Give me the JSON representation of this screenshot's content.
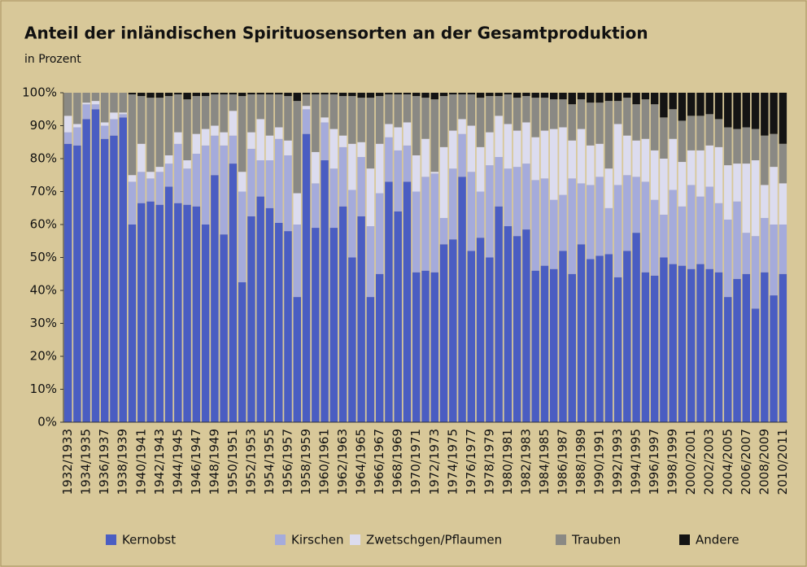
{
  "chart_data": {
    "type": "stacked_bar",
    "title": "Anteil der inländischen Spirituosensorten an der Gesamtproduktion",
    "subtitle": "in Prozent",
    "categories": [
      "1932/1933",
      null,
      "1934/1935",
      null,
      "1936/1937",
      null,
      "1938/1939",
      null,
      "1940/1941",
      null,
      "1942/1943",
      null,
      "1944/1945",
      null,
      "1946/1947",
      null,
      "1948/1949",
      null,
      "1950/1951",
      null,
      "1952/1953",
      null,
      "1954/1955",
      null,
      "1956/1957",
      null,
      "1958/1959",
      null,
      "1960/1961",
      null,
      "1962/1963",
      null,
      "1964/1965",
      null,
      "1966/1967",
      null,
      "1968/1969",
      null,
      "1970/1971",
      null,
      "1972/1973",
      null,
      "1974/1975",
      null,
      "1976/1977",
      null,
      "1978/1979",
      null,
      "1980/1981",
      null,
      "1982/1983",
      null,
      "1984/1985",
      null,
      "1986/1987",
      null,
      "1988/1989",
      null,
      "1990/1991",
      null,
      "1992/1993",
      null,
      "1994/1995",
      null,
      "1996/1997",
      null,
      "1998/1999",
      null,
      "2000/2001",
      null,
      "2002/2003",
      null,
      "2004/2005",
      null,
      "2006/2007",
      null,
      "2008/2009",
      null,
      "2010/2011"
    ],
    "series": [
      {
        "name": "Kernobst",
        "color": "#4a5dc2",
        "values": [
          84.5,
          84,
          92,
          95,
          86,
          87,
          92.5,
          60,
          66.5,
          67,
          66,
          71.5,
          66.5,
          66,
          65.5,
          60,
          75,
          57,
          78.5,
          42.5,
          62.5,
          68.5,
          65,
          60.5,
          58,
          38,
          87.5,
          59,
          79.5,
          59,
          65.5,
          50,
          62.5,
          38,
          45,
          73,
          64,
          73,
          45.5,
          46,
          45.5,
          54,
          55.5,
          74.5,
          52,
          56,
          50,
          65.5,
          59.5,
          56.5,
          58.5,
          46,
          47.5,
          46.5,
          52,
          45,
          54,
          49.5,
          50.5,
          51,
          44,
          52,
          57.5,
          45.5,
          44.5,
          50,
          48,
          47.5,
          46.5,
          48,
          46.5,
          45.5,
          38,
          43.5,
          45,
          34.5,
          45.5,
          38.5,
          45
        ]
      },
      {
        "name": "Kirschen",
        "color": "#a5abdb",
        "values": [
          3.5,
          5.5,
          4.5,
          1.5,
          4,
          5,
          1,
          13,
          9.5,
          7,
          10,
          7,
          18,
          11,
          16,
          24,
          12,
          27,
          8.5,
          27.5,
          20.5,
          11,
          14.5,
          25.5,
          23,
          22,
          7.5,
          13.5,
          11.5,
          18,
          18,
          20.5,
          18,
          21.5,
          24.5,
          13.5,
          18.5,
          11,
          24.5,
          28.5,
          30,
          8,
          21.5,
          13,
          24,
          14,
          28,
          15,
          17.5,
          21,
          20,
          27.5,
          26.5,
          21,
          17,
          29,
          18.5,
          22.5,
          24,
          14,
          28,
          23,
          17,
          27.5,
          23,
          13,
          22.5,
          18,
          25.5,
          20.5,
          25,
          21,
          23.5,
          23.5,
          12.5,
          22,
          16.5,
          21.5,
          15
        ]
      },
      {
        "name": "Zwetschgen/Pflaumen",
        "color": "#dcdcef",
        "values": [
          5,
          1,
          0.5,
          1,
          1,
          2,
          0.5,
          2,
          8.5,
          2,
          1.5,
          2.5,
          3.5,
          2.5,
          6,
          5,
          3,
          4,
          7.5,
          6,
          5,
          12.5,
          7.5,
          3.5,
          4.5,
          9.5,
          1,
          9.5,
          1.5,
          12,
          3.5,
          14,
          4.5,
          17.5,
          15,
          4,
          7,
          7,
          11,
          11.5,
          0.5,
          21.5,
          11.5,
          4.5,
          14,
          13.5,
          10,
          12.5,
          13.5,
          11,
          12.5,
          13,
          14.5,
          21.5,
          20.5,
          11.5,
          16.5,
          12,
          10,
          12,
          18.5,
          12,
          11,
          13,
          15,
          17,
          15.5,
          13.5,
          10.5,
          14,
          12.5,
          17,
          16.5,
          11.5,
          21,
          23,
          10,
          17.5,
          12.5
        ]
      },
      {
        "name": "Trauben",
        "color": "#8a8984",
        "values": [
          7,
          9.5,
          3,
          2.5,
          9,
          6,
          6,
          24.5,
          14.5,
          22.5,
          21,
          18,
          11.5,
          18.5,
          11.5,
          10,
          9.5,
          11.5,
          5,
          23,
          11.5,
          7.5,
          12.5,
          10,
          13.5,
          28,
          3.5,
          17.5,
          7,
          10.5,
          12,
          14.5,
          13.5,
          21.5,
          14.5,
          9,
          10,
          8.5,
          18,
          12.5,
          22,
          15.5,
          11,
          7.5,
          9.5,
          15,
          11,
          6,
          9,
          10,
          8,
          12,
          10,
          9,
          8.5,
          11,
          9,
          13,
          12.5,
          20.5,
          7,
          11.5,
          11,
          12,
          14,
          12.5,
          9,
          12.5,
          10.5,
          10.5,
          9.5,
          8.5,
          11.5,
          10.5,
          11,
          9.5,
          15,
          10,
          12
        ]
      },
      {
        "name": "Andere",
        "color": "#141414",
        "values": [
          0,
          0,
          0,
          0,
          0,
          0,
          0,
          0.5,
          1,
          1.5,
          1.5,
          1,
          0.5,
          2,
          1,
          1,
          0.5,
          0.5,
          0.5,
          1,
          0.5,
          0.5,
          0.5,
          0.5,
          1,
          2.5,
          0.5,
          0.5,
          0.5,
          0.5,
          1,
          1,
          1.5,
          1.5,
          1,
          0.5,
          0.5,
          0.5,
          1,
          1.5,
          2,
          1,
          0.5,
          0.5,
          0.5,
          1.5,
          1,
          1,
          0.5,
          1.5,
          1,
          1.5,
          1.5,
          2,
          2,
          3.5,
          2,
          3,
          3,
          2.5,
          2.5,
          1.5,
          3.5,
          2,
          3.5,
          7.5,
          5,
          8.5,
          7,
          7,
          6.5,
          8,
          10.5,
          11,
          10.5,
          11,
          13,
          12.5,
          15.5
        ]
      }
    ],
    "ylim": [
      0,
      100
    ],
    "yticks": [
      {
        "value": 0,
        "label": "0%"
      },
      {
        "value": 10,
        "label": "10%"
      },
      {
        "value": 20,
        "label": "20%"
      },
      {
        "value": 30,
        "label": "30%"
      },
      {
        "value": 40,
        "label": "40%"
      },
      {
        "value": 50,
        "label": "50%"
      },
      {
        "value": 60,
        "label": "60%"
      },
      {
        "value": 70,
        "label": "70%"
      },
      {
        "value": 80,
        "label": "80%"
      },
      {
        "value": 90,
        "label": "90%"
      },
      {
        "value": 100,
        "label": "100%"
      }
    ],
    "legend": "bottom"
  }
}
